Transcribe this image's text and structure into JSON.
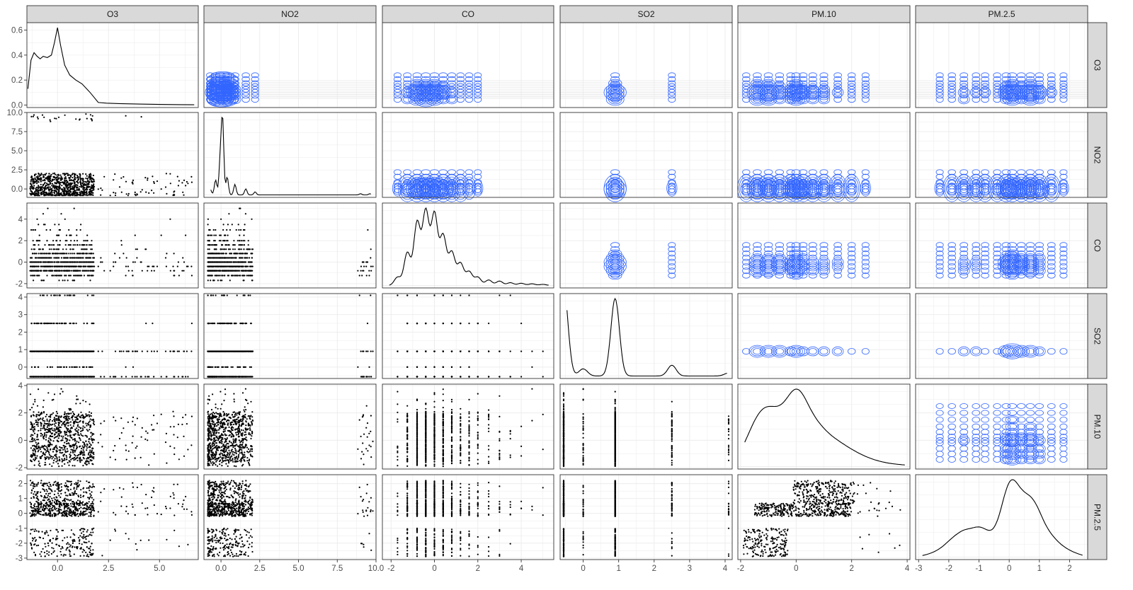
{
  "chart_data": {
    "type": "scatter",
    "subtype": "pairs-matrix",
    "variables": [
      "O3",
      "NO2",
      "CO",
      "SO2",
      "PM.10",
      "PM.2.5"
    ],
    "title": "",
    "xlabel": "",
    "ylabel": "",
    "grid": true,
    "legend": "none",
    "colors": {
      "points": "#000000",
      "density_line": "#000000",
      "contours": "#3366FF",
      "strip_fill": "#D9D9D9",
      "panel_border": "#333333"
    },
    "lower_panels": "scatter",
    "upper_panels": "density2d",
    "diagonal_panels": "density",
    "x_ticks": [
      [
        "0.0",
        "2.5",
        "5.0"
      ],
      [
        "0.0",
        "2.5",
        "5.0",
        "7.5",
        "10.0"
      ],
      [
        "-2",
        "0",
        "2",
        "4"
      ],
      [
        "0",
        "1",
        "2",
        "3",
        "4"
      ],
      [
        "-2",
        "0",
        "2",
        "4"
      ],
      [
        "-3",
        "-2",
        "-1",
        "0",
        "1",
        "2"
      ]
    ],
    "y_ticks": [
      [
        "0.0",
        "0.2",
        "0.4",
        "0.6"
      ],
      [
        "0.0",
        "2.5",
        "5.0",
        "7.5",
        "10.0"
      ],
      [
        "-2",
        "0",
        "2",
        "4"
      ],
      [
        "0",
        "1",
        "2",
        "3",
        "4"
      ],
      [
        "-2",
        "0",
        "2",
        "4"
      ],
      [
        "-3",
        "-2",
        "-1",
        "0",
        "1",
        "2"
      ]
    ],
    "ranges": [
      [
        -1.5,
        6.9
      ],
      [
        -1.1,
        10.0
      ],
      [
        -2.4,
        5.5
      ],
      [
        -0.65,
        4.2
      ],
      [
        -2.1,
        4.1
      ],
      [
        -3.1,
        2.6
      ]
    ],
    "diag_ylim": [
      -0.02,
      0.66
    ],
    "o3_density": {
      "x": [
        -1.45,
        -1.3,
        -1.15,
        -1.0,
        -0.85,
        -0.7,
        -0.5,
        -0.3,
        -0.15,
        0.0,
        0.15,
        0.35,
        0.6,
        0.9,
        1.2,
        1.6,
        2.0,
        2.4,
        3.0,
        4.0,
        5.0,
        6.0,
        6.7
      ],
      "y": [
        0.13,
        0.36,
        0.42,
        0.39,
        0.37,
        0.39,
        0.38,
        0.4,
        0.5,
        0.62,
        0.48,
        0.32,
        0.24,
        0.2,
        0.17,
        0.1,
        0.02,
        0.015,
        0.012,
        0.008,
        0.005,
        0.003,
        0.002
      ]
    },
    "bandwidths": [
      0.2,
      0.08,
      0.15,
      0.12,
      0.35,
      0.25
    ],
    "centers": [
      [
        -1.2,
        -0.7,
        -0.3,
        0.0,
        0.3,
        0.6,
        0.9,
        1.3,
        1.7,
        2.6,
        3.4,
        4.3,
        5.2,
        6.1
      ],
      [
        -0.7,
        -0.35,
        -0.05,
        0.1,
        0.4,
        0.9,
        1.6,
        2.2,
        9.0,
        9.6
      ],
      [
        -1.7,
        -1.25,
        -0.8,
        -0.4,
        0.0,
        0.4,
        0.8,
        1.2,
        1.6,
        2.0,
        2.5,
        3.0,
        3.5,
        4.0,
        4.5,
        5.0
      ],
      [
        -0.55,
        0.0,
        0.9,
        2.5,
        4.1
      ],
      [
        -1.8,
        -1.4,
        -1.0,
        -0.6,
        -0.2,
        0.0,
        0.25,
        0.6,
        1.0,
        1.5,
        2.0,
        2.5,
        3.0,
        3.5,
        4.0
      ],
      [
        -2.7,
        -2.3,
        -1.9,
        -1.5,
        -1.1,
        -0.8,
        -0.4,
        -0.1,
        0.1,
        0.4,
        0.7,
        1.0,
        1.4,
        1.8,
        2.2
      ]
    ],
    "center_weights": [
      [
        1.0,
        1.2,
        1.1,
        1.6,
        1.0,
        0.8,
        0.7,
        0.5,
        0.2,
        0.05,
        0.04,
        0.03,
        0.02,
        0.02
      ],
      [
        0.4,
        1.0,
        2.2,
        5.0,
        1.2,
        0.7,
        0.4,
        0.2,
        0.08,
        0.08
      ],
      [
        0.15,
        0.6,
        1.15,
        1.35,
        1.3,
        0.9,
        0.6,
        0.4,
        0.25,
        0.15,
        0.1,
        0.08,
        0.05,
        0.04,
        0.03,
        0.02
      ],
      [
        1.5,
        0.12,
        1.3,
        0.18,
        0.05
      ],
      [
        0.4,
        1.0,
        1.1,
        0.9,
        0.7,
        1.2,
        0.8,
        0.75,
        0.7,
        0.55,
        0.35,
        0.2,
        0.1,
        0.05,
        0.03
      ],
      [
        0.05,
        0.15,
        0.4,
        0.6,
        0.55,
        0.5,
        0.4,
        0.9,
        1.3,
        0.9,
        1.05,
        0.8,
        0.45,
        0.2,
        0.08
      ]
    ]
  }
}
